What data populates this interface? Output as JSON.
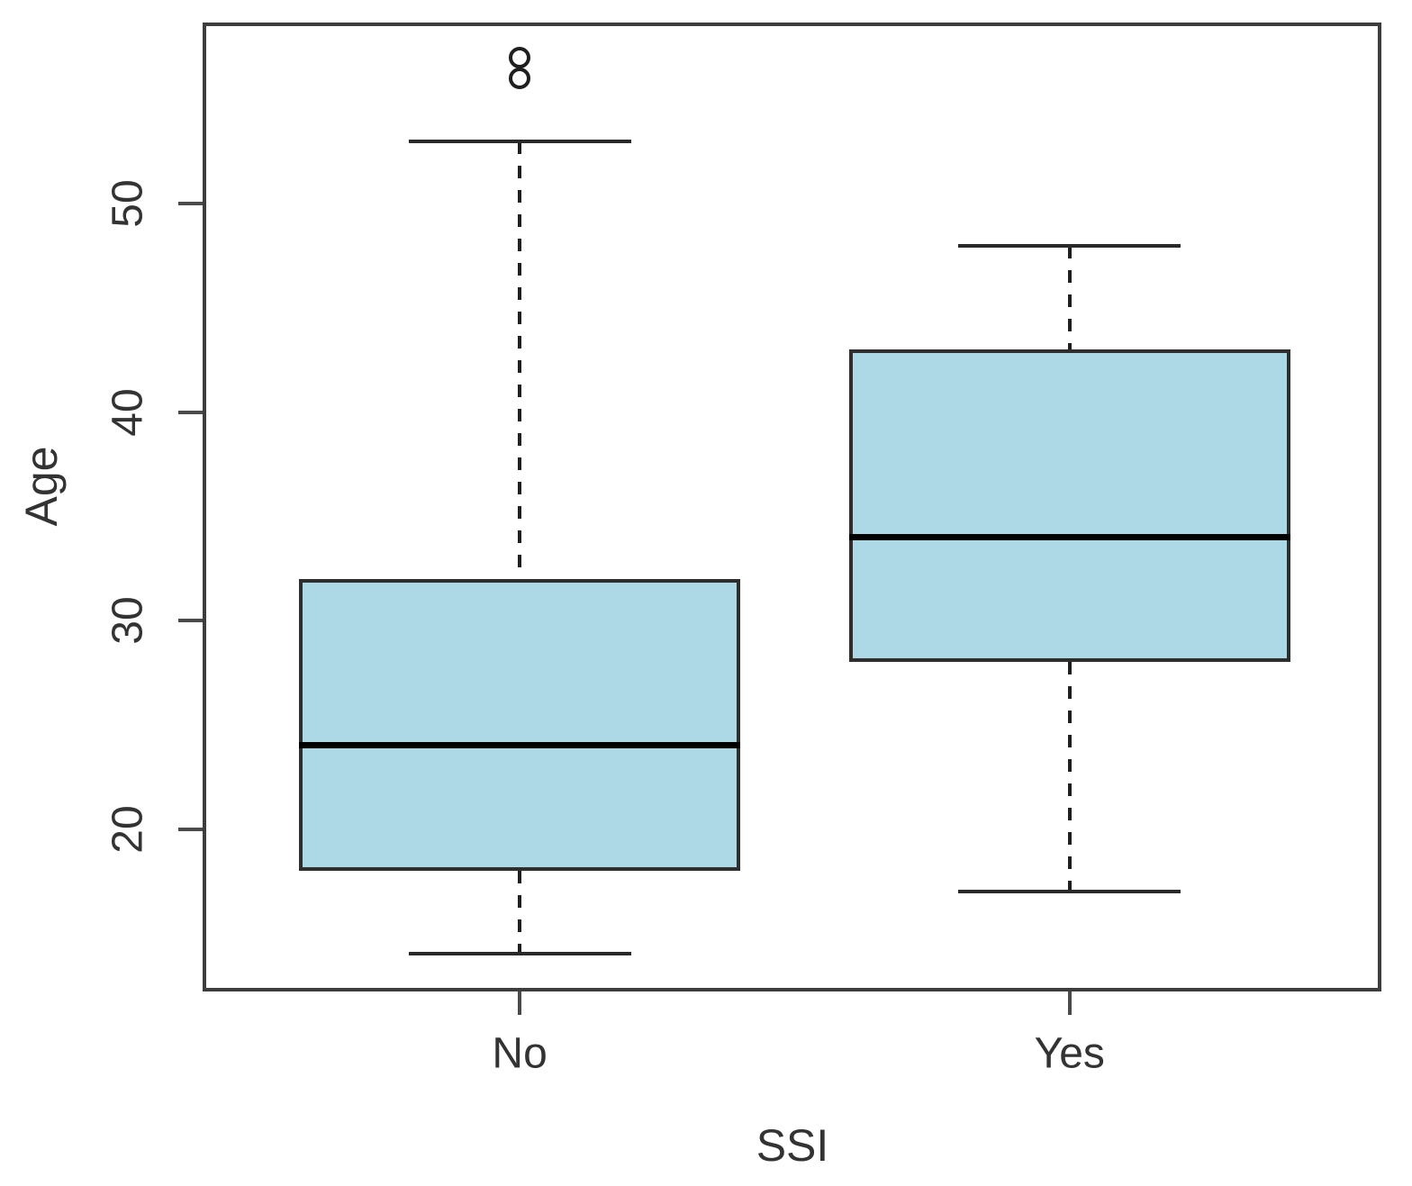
{
  "chart_data": {
    "type": "boxplot",
    "title": "",
    "xlabel": "SSI",
    "ylabel": "Age",
    "categories": [
      "No",
      "Yes"
    ],
    "y_ticks": [
      20,
      30,
      40,
      50
    ],
    "ylim": [
      12.2,
      58.7
    ],
    "grid": false,
    "legend": "none",
    "boxes": [
      {
        "category": "No",
        "whisker_low": 14,
        "q1": 18,
        "median": 24,
        "q3": 32,
        "whisker_high": 53,
        "outliers": [
          56,
          57
        ]
      },
      {
        "category": "Yes",
        "whisker_low": 17,
        "q1": 28,
        "median": 34,
        "q3": 43,
        "whisker_high": 48,
        "outliers": []
      }
    ],
    "colors": {
      "box_fill": "#ADD8E6",
      "box_border": "#2e2e2e",
      "median": "#000000",
      "whisker": "#1f1f1f",
      "axis": "#3d3d3d",
      "text": "#333333",
      "background": "#ffffff"
    }
  }
}
